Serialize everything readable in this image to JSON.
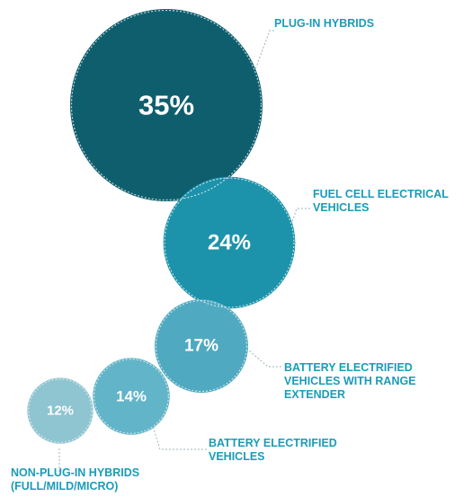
{
  "chart_data": {
    "type": "bubble",
    "title": "",
    "colors": {
      "label_text": "#1b9bb8",
      "leader_line": "#9fb3b8",
      "overlap_outline": "#e8f3f6",
      "percent_text": "#ffffff"
    },
    "items": [
      {
        "label_lines": [
          "PLUG-IN HYBRIDS"
        ],
        "value": 35,
        "value_label": "35%",
        "color": "#0f5e6e"
      },
      {
        "label_lines": [
          "FUEL CELL ELECTRICAL",
          "VEHICLES"
        ],
        "value": 24,
        "value_label": "24%",
        "color": "#1c93ab"
      },
      {
        "label_lines": [
          "BATTERY ELECTRIFIED",
          "VEHICLES WITH RANGE",
          "EXTENDER"
        ],
        "value": 17,
        "value_label": "17%",
        "color": "#4fa9c0"
      },
      {
        "label_lines": [
          "BATTERY ELECTRIFIED",
          "VEHICLES"
        ],
        "value": 14,
        "value_label": "14%",
        "color": "#62b4c8"
      },
      {
        "label_lines": [
          "NON-PLUG-IN HYBRIDS",
          "(FULL/MILD/MICRO)"
        ],
        "value": 12,
        "value_label": "12%",
        "color": "#8fc4d1"
      }
    ]
  }
}
